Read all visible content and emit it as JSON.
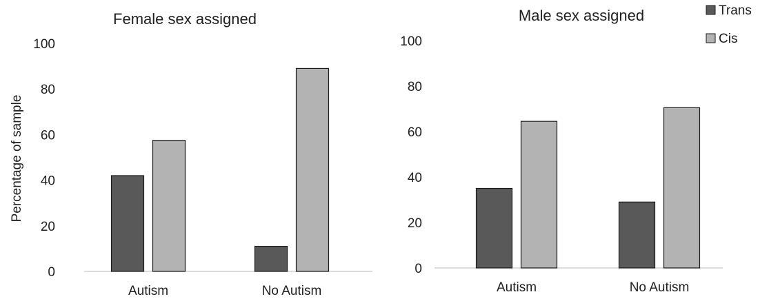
{
  "chart_data": [
    {
      "type": "bar",
      "title": "Female sex assigned",
      "ylabel": "Percentage of sample",
      "xlabel": "",
      "categories": [
        "Autism",
        "No Autism"
      ],
      "series": [
        {
          "name": "Trans",
          "values": [
            42,
            11
          ],
          "color": "#595959"
        },
        {
          "name": "Cis",
          "values": [
            57.5,
            89
          ],
          "color": "#b3b3b3"
        }
      ],
      "ylim": [
        0,
        100
      ],
      "yticks": [
        "0",
        "20",
        "40",
        "60",
        "80",
        "100"
      ],
      "grid": false
    },
    {
      "type": "bar",
      "title": "Male sex assigned",
      "ylabel": "",
      "xlabel": "",
      "categories": [
        "Autism",
        "No Autism"
      ],
      "series": [
        {
          "name": "Trans",
          "values": [
            35,
            29
          ],
          "color": "#595959"
        },
        {
          "name": "Cis",
          "values": [
            64.5,
            70.5
          ],
          "color": "#b3b3b3"
        }
      ],
      "ylim": [
        0,
        100
      ],
      "yticks": [
        "0",
        "20",
        "40",
        "60",
        "80",
        "100"
      ],
      "grid": false,
      "legend": "top-right"
    }
  ]
}
